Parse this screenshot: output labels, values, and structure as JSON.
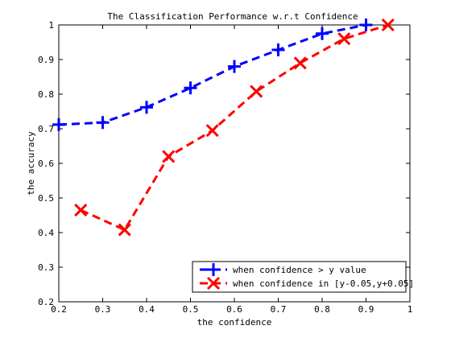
{
  "chart_data": {
    "type": "line",
    "title": "The Classification Performance w.r.t Confidence",
    "xlabel": "the confidence",
    "ylabel": "the accuracy",
    "xlim": [
      0.2,
      1
    ],
    "ylim": [
      0.2,
      1
    ],
    "xticks": [
      0.2,
      0.3,
      0.4,
      0.5,
      0.6,
      0.7,
      0.8,
      0.9,
      1
    ],
    "yticks": [
      0.2,
      0.3,
      0.4,
      0.5,
      0.6,
      0.7,
      0.8,
      0.9,
      1
    ],
    "xtick_labels": [
      "0.2",
      "0.3",
      "0.4",
      "0.5",
      "0.6",
      "0.7",
      "0.8",
      "0.9",
      "1"
    ],
    "ytick_labels": [
      "0.2",
      "0.3",
      "0.4",
      "0.5",
      "0.6",
      "0.7",
      "0.8",
      "0.9",
      "1"
    ],
    "grid": false,
    "legend_position": "bottom-right",
    "series": [
      {
        "name": "when confidence > y value",
        "color": "#0000ff",
        "marker": "plus",
        "x": [
          0.2,
          0.3,
          0.4,
          0.5,
          0.6,
          0.7,
          0.8,
          0.9
        ],
        "y": [
          0.712,
          0.718,
          0.762,
          0.818,
          0.88,
          0.928,
          0.975,
          1.0
        ]
      },
      {
        "name": "when confidence in [y-0.05,y+0.05]",
        "color": "#ff0000",
        "marker": "x",
        "x": [
          0.25,
          0.35,
          0.45,
          0.55,
          0.65,
          0.75,
          0.85,
          0.95
        ],
        "y": [
          0.465,
          0.408,
          0.62,
          0.695,
          0.808,
          0.89,
          0.96,
          1.0
        ]
      }
    ]
  }
}
